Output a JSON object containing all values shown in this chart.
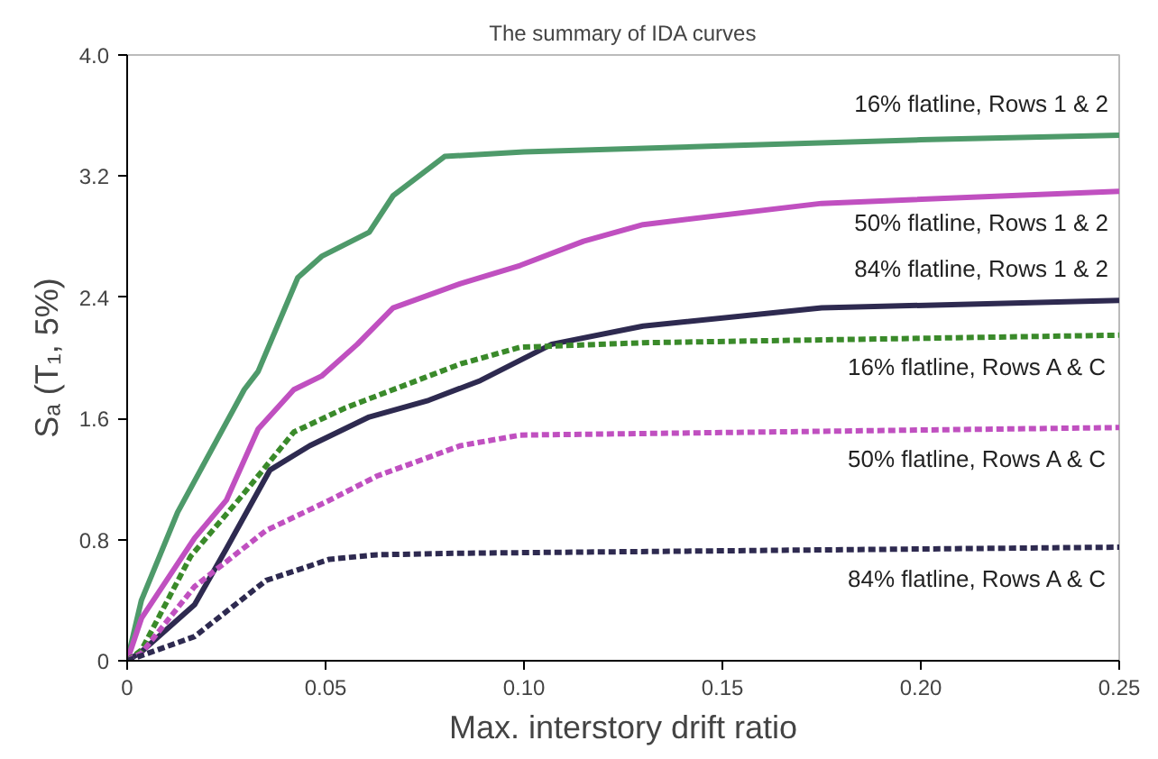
{
  "chart_data": {
    "type": "line",
    "title": "The summary of IDA curves",
    "xlabel": "Max. interstory drift ratio",
    "ylabel": "Sₐ (T₁, 5%)",
    "xlim": [
      0,
      0.25
    ],
    "ylim": [
      0,
      4.0
    ],
    "xticks": [
      0,
      0.05,
      {
        "value": 0.1,
        "label": "0.10"
      },
      0.15,
      {
        "value": 0.2,
        "label": "0.20"
      },
      0.25
    ],
    "yticks": [
      0,
      0.8,
      1.6,
      2.4,
      3.2,
      {
        "value": 4,
        "label": "4.0"
      }
    ],
    "grid": false,
    "marker": "none",
    "series": [
      {
        "name": "16% flatline, Rows 1 & 2",
        "color": "#4e9a6a",
        "line_style": "solid",
        "x": [
          0,
          0.0036,
          0.0127,
          0.0295,
          0.033,
          0.043,
          0.049,
          0.061,
          0.067,
          0.08,
          0.1,
          0.15,
          0.2,
          0.25
        ],
        "values": [
          0,
          0.4,
          0.98,
          1.79,
          1.91,
          2.53,
          2.67,
          2.83,
          3.07,
          3.33,
          3.36,
          3.4,
          3.44,
          3.47
        ]
      },
      {
        "name": "50% flatline, Rows 1 & 2",
        "color": "#c050c0",
        "line_style": "solid",
        "x": [
          0,
          0.0036,
          0.017,
          0.025,
          0.033,
          0.042,
          0.049,
          0.058,
          0.067,
          0.084,
          0.099,
          0.115,
          0.13,
          0.175,
          0.25
        ],
        "values": [
          0,
          0.28,
          0.81,
          1.06,
          1.53,
          1.79,
          1.88,
          2.09,
          2.33,
          2.49,
          2.61,
          2.77,
          2.88,
          3.02,
          3.1
        ]
      },
      {
        "name": "84% flatline, Rows 1 & 2",
        "color": "#2e2a50",
        "line_style": "solid",
        "x": [
          0,
          0.0036,
          0.017,
          0.025,
          0.036,
          0.046,
          0.061,
          0.076,
          0.089,
          0.107,
          0.13,
          0.175,
          0.25
        ],
        "values": [
          0,
          0.06,
          0.37,
          0.74,
          1.26,
          1.42,
          1.61,
          1.72,
          1.85,
          2.09,
          2.21,
          2.33,
          2.38
        ]
      },
      {
        "name": "16% flatline, Rows A & C",
        "color": "#3a8a2a",
        "line_style": "dashed",
        "x": [
          0,
          0.0036,
          0.016,
          0.028,
          0.042,
          0.055,
          0.084,
          0.099,
          0.13,
          0.25
        ],
        "values": [
          0,
          0.07,
          0.69,
          1.06,
          1.51,
          1.67,
          1.96,
          2.07,
          2.1,
          2.15
        ]
      },
      {
        "name": "50% flatline, Rows A & C",
        "color": "#c050c0",
        "line_style": "dashed",
        "x": [
          0,
          0.0036,
          0.017,
          0.035,
          0.051,
          0.063,
          0.084,
          0.099,
          0.25
        ],
        "values": [
          0,
          0.05,
          0.49,
          0.86,
          1.06,
          1.22,
          1.42,
          1.49,
          1.54
        ]
      },
      {
        "name": "84% flatline, Rows A & C",
        "color": "#2e2a50",
        "line_style": "dashed",
        "x": [
          0,
          0.017,
          0.035,
          0.051,
          0.063,
          0.084,
          0.25
        ],
        "values": [
          0,
          0.16,
          0.53,
          0.67,
          0.7,
          0.71,
          0.75
        ]
      }
    ]
  }
}
